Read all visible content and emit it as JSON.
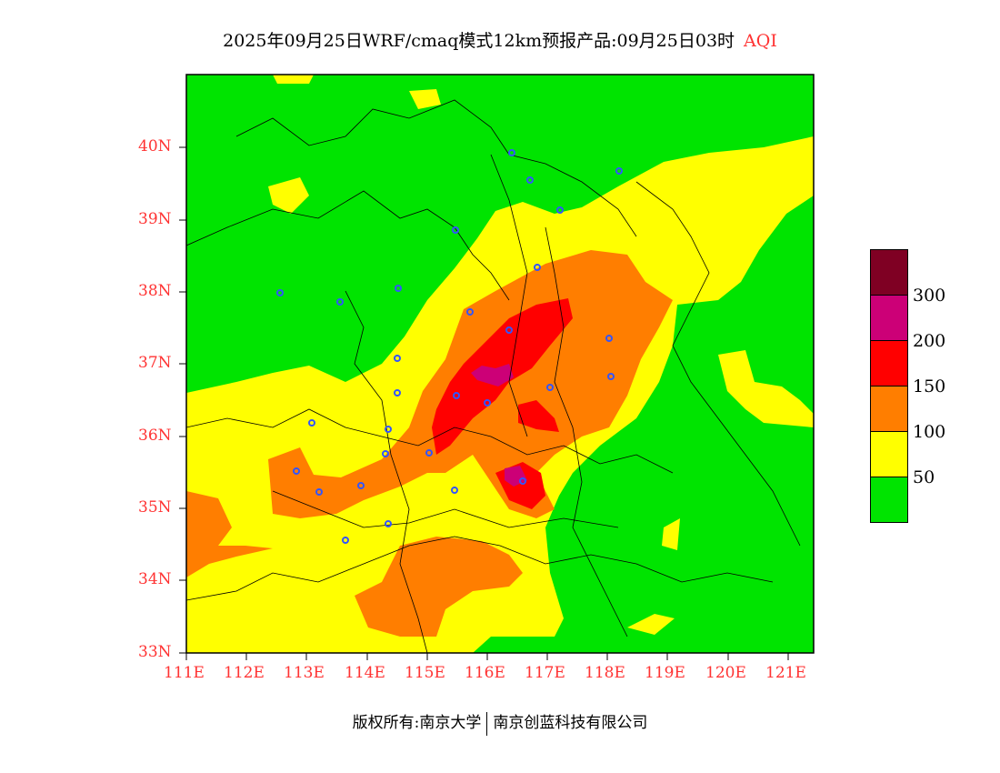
{
  "title": {
    "text": "2025年09月25日WRF/cmaq模式12km预报产品:09月25日03时",
    "variable": "AQI"
  },
  "axes": {
    "y_ticks": [
      "40N",
      "39N",
      "38N",
      "37N",
      "36N",
      "35N",
      "34N",
      "33N"
    ],
    "x_ticks": [
      "111E",
      "112E",
      "113E",
      "114E",
      "115E",
      "116E",
      "117E",
      "118E",
      "119E",
      "120E",
      "121E"
    ],
    "lat_range": [
      33,
      41
    ],
    "lon_range": [
      111,
      121.4
    ]
  },
  "legend": {
    "labels": [
      "300",
      "200",
      "150",
      "100",
      "50"
    ],
    "colors": [
      "#7f0023",
      "#cc0077",
      "#ff0000",
      "#ff7e00",
      "#ffff00",
      "#00e400"
    ]
  },
  "colors": {
    "green": "#00e400",
    "yellow": "#ffff00",
    "orange": "#ff7e00",
    "red": "#ff0000",
    "magenta": "#cc0077",
    "station": "#3355ff",
    "tick_text": "#ff3333"
  },
  "copyright": {
    "left": "版权所有:南京大学",
    "right": "南京创蓝科技有限公司"
  }
}
